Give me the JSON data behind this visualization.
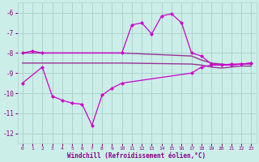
{
  "xlabel": "Windchill (Refroidissement éolien,°C)",
  "background_color": "#cceee8",
  "grid_color": "#aad4cc",
  "xlim": [
    -0.5,
    23.5
  ],
  "ylim": [
    -12.5,
    -5.5
  ],
  "yticks": [
    -12,
    -11,
    -10,
    -9,
    -8,
    -7,
    -6
  ],
  "xticks": [
    0,
    1,
    2,
    3,
    4,
    5,
    6,
    7,
    8,
    9,
    10,
    11,
    12,
    13,
    14,
    15,
    16,
    17,
    18,
    19,
    20,
    21,
    22,
    23
  ],
  "line1_color": "#cc00cc",
  "line2_color": "#993399",
  "line3_color": "#993399",
  "line4_color": "#cc00cc",
  "text_color": "#880088",
  "line1": {
    "x": [
      0,
      1,
      2,
      10,
      11,
      12,
      13,
      14,
      15,
      16,
      17,
      18,
      19,
      20,
      21,
      22,
      23
    ],
    "y": [
      -8.0,
      -7.9,
      -8.0,
      -8.0,
      -6.6,
      -6.5,
      -7.05,
      -6.15,
      -6.05,
      -6.5,
      -8.0,
      -8.15,
      -8.55,
      -8.6,
      -8.6,
      -8.55,
      -8.5
    ]
  },
  "line2": {
    "x": [
      0,
      1,
      2,
      3,
      10,
      17,
      18,
      19,
      20,
      21,
      22,
      23
    ],
    "y": [
      -8.0,
      -8.0,
      -8.0,
      -8.0,
      -8.0,
      -8.15,
      -8.35,
      -8.5,
      -8.55,
      -8.6,
      -8.55,
      -8.55
    ]
  },
  "line3": {
    "x": [
      0,
      1,
      2,
      3,
      10,
      17,
      18,
      19,
      20,
      21,
      22,
      23
    ],
    "y": [
      -8.5,
      -8.5,
      -8.5,
      -8.5,
      -8.5,
      -8.55,
      -8.6,
      -8.7,
      -8.75,
      -8.7,
      -8.65,
      -8.65
    ]
  },
  "line4": {
    "x": [
      0,
      2,
      3,
      4,
      5,
      6,
      7,
      8,
      9,
      10,
      17,
      18,
      19,
      20,
      21,
      22,
      23
    ],
    "y": [
      -9.5,
      -8.7,
      -10.15,
      -10.35,
      -10.5,
      -10.55,
      -11.6,
      -10.1,
      -9.75,
      -9.5,
      -9.0,
      -8.7,
      -8.6,
      -8.6,
      -8.55,
      -8.55,
      -8.5
    ]
  }
}
